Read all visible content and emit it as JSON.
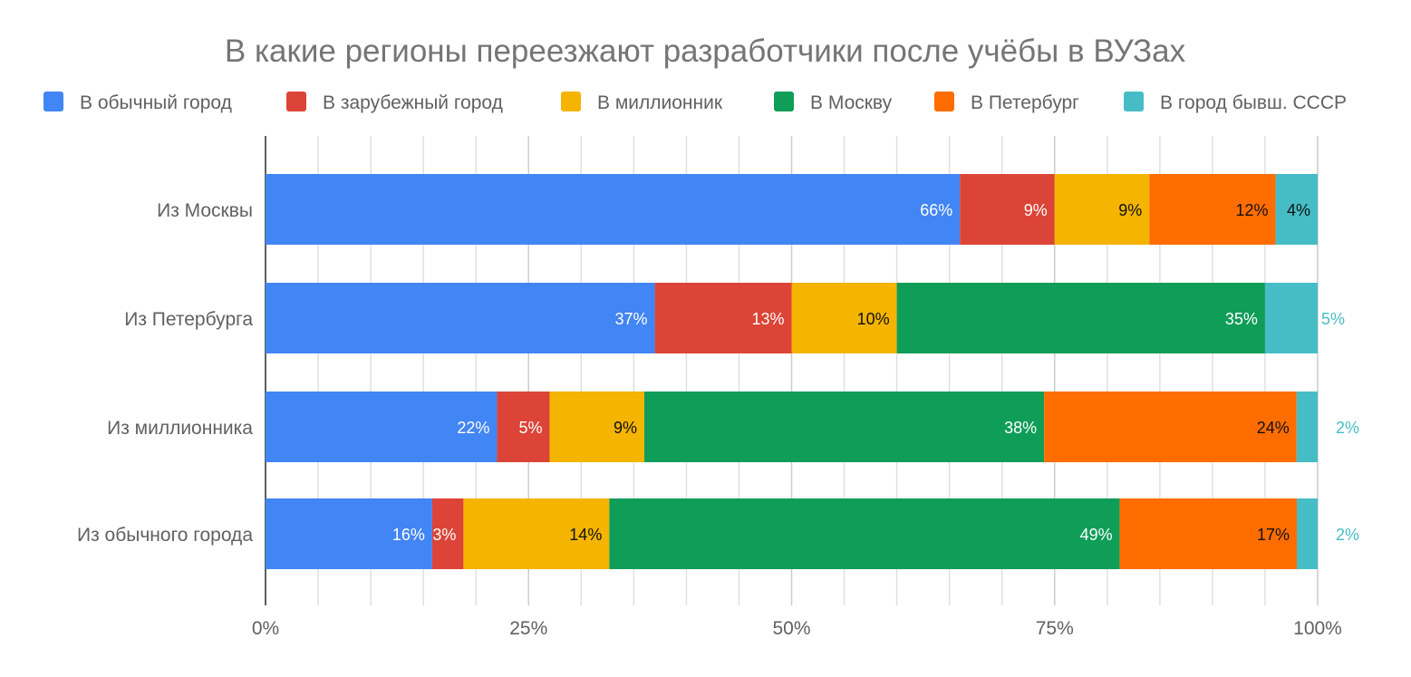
{
  "chart_data": {
    "type": "bar",
    "orientation": "horizontal",
    "stacked": "percent",
    "title": "В какие регионы переезжают разработчики после учёбы в ВУЗах",
    "legend_position": "top",
    "grid": true,
    "xlim": [
      0,
      100
    ],
    "x_ticks": [
      "0%",
      "25%",
      "50%",
      "75%",
      "100%"
    ],
    "categories": [
      "Из Москвы",
      "Из Петербурга",
      "Из миллионника",
      "Из обычного города"
    ],
    "series": [
      {
        "name": "В обычный город",
        "color": "#4285f4",
        "values": [
          66,
          37,
          22,
          16
        ]
      },
      {
        "name": "В зарубежный город",
        "color": "#db4437",
        "values": [
          9,
          13,
          5,
          3
        ]
      },
      {
        "name": "В миллионник",
        "color": "#f4b400",
        "values": [
          9,
          10,
          9,
          14
        ]
      },
      {
        "name": "В Москву",
        "color": "#0f9d58",
        "values": [
          0,
          35,
          38,
          49
        ]
      },
      {
        "name": "В Петербург",
        "color": "#ff6d00",
        "values": [
          12,
          0,
          24,
          17
        ]
      },
      {
        "name": "В город бывш. СССР",
        "color": "#46bdc6",
        "values": [
          4,
          5,
          2,
          2
        ]
      }
    ],
    "data_label_suffix": "%"
  }
}
